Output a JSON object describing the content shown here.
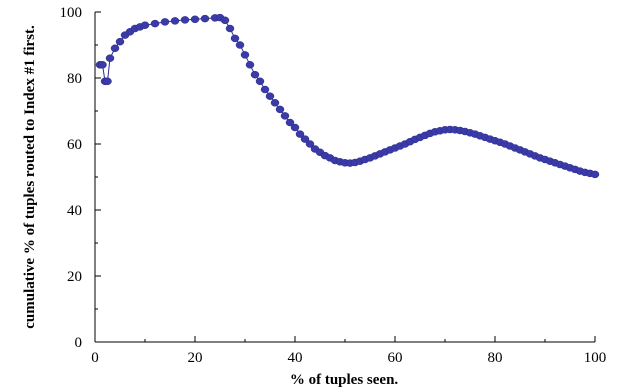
{
  "chart_data": {
    "type": "scatter",
    "xlabel": "% of tuples seen.",
    "ylabel": "cumulative % of tuples routed to Index #1 first.",
    "xlim": [
      0,
      100
    ],
    "ylim": [
      0,
      100
    ],
    "x_ticks": [
      "0",
      "20",
      "40",
      "60",
      "80",
      "100"
    ],
    "y_ticks": [
      "0",
      "20",
      "40",
      "60",
      "80",
      "100"
    ],
    "grid": false,
    "series": [
      {
        "color": "#3a3aa8",
        "x": [
          1.0,
          1.5,
          2.0,
          2.5,
          3.0,
          4.0,
          5.0,
          6.0,
          7.0,
          8.0,
          9.0,
          10.0,
          12.0,
          14.0,
          16.0,
          18.0,
          20.0,
          22.0,
          24.0,
          25.0,
          26.0,
          27.0,
          28.0,
          29.0,
          30.0,
          31.0,
          32.0,
          33.0,
          34.0,
          35.0,
          36.0,
          37.0,
          38.0,
          39.0,
          40.0,
          41.0,
          42.0,
          43.0,
          44.0,
          45.0,
          46.0,
          47.0,
          48.0,
          49.0,
          50.0,
          51.0,
          52.0,
          53.0,
          54.0,
          55.0,
          56.0,
          57.0,
          58.0,
          59.0,
          60.0,
          61.0,
          62.0,
          63.0,
          64.0,
          65.0,
          66.0,
          67.0,
          68.0,
          69.0,
          70.0,
          71.0,
          72.0,
          73.0,
          74.0,
          75.0,
          76.0,
          77.0,
          78.0,
          79.0,
          80.0,
          81.0,
          82.0,
          83.0,
          84.0,
          85.0,
          86.0,
          87.0,
          88.0,
          89.0,
          90.0,
          91.0,
          92.0,
          93.0,
          94.0,
          95.0,
          96.0,
          97.0,
          98.0,
          99.0,
          100.0
        ],
        "y": [
          84,
          84,
          79,
          79,
          86,
          89,
          91,
          93,
          94,
          95,
          95.5,
          96,
          96.5,
          97,
          97.3,
          97.6,
          97.8,
          98,
          98.2,
          98.3,
          97.5,
          95,
          92,
          90,
          87,
          84,
          81,
          79,
          76.5,
          74.5,
          72.5,
          70.5,
          68.5,
          66.5,
          65,
          63,
          61.5,
          60,
          58.5,
          57.5,
          56.5,
          55.8,
          55,
          54.6,
          54.3,
          54.2,
          54.4,
          54.8,
          55.3,
          55.8,
          56.4,
          57,
          57.6,
          58.2,
          58.8,
          59.4,
          60,
          60.7,
          61.4,
          62,
          62.6,
          63.2,
          63.7,
          64,
          64.3,
          64.4,
          64.3,
          64.1,
          63.8,
          63.4,
          63,
          62.5,
          62,
          61.5,
          61,
          60.5,
          60,
          59.4,
          58.8,
          58.2,
          57.6,
          57,
          56.4,
          55.8,
          55.3,
          54.8,
          54.3,
          53.8,
          53.3,
          52.8,
          52.3,
          51.8,
          51.4,
          51.1,
          50.8
        ]
      }
    ]
  }
}
